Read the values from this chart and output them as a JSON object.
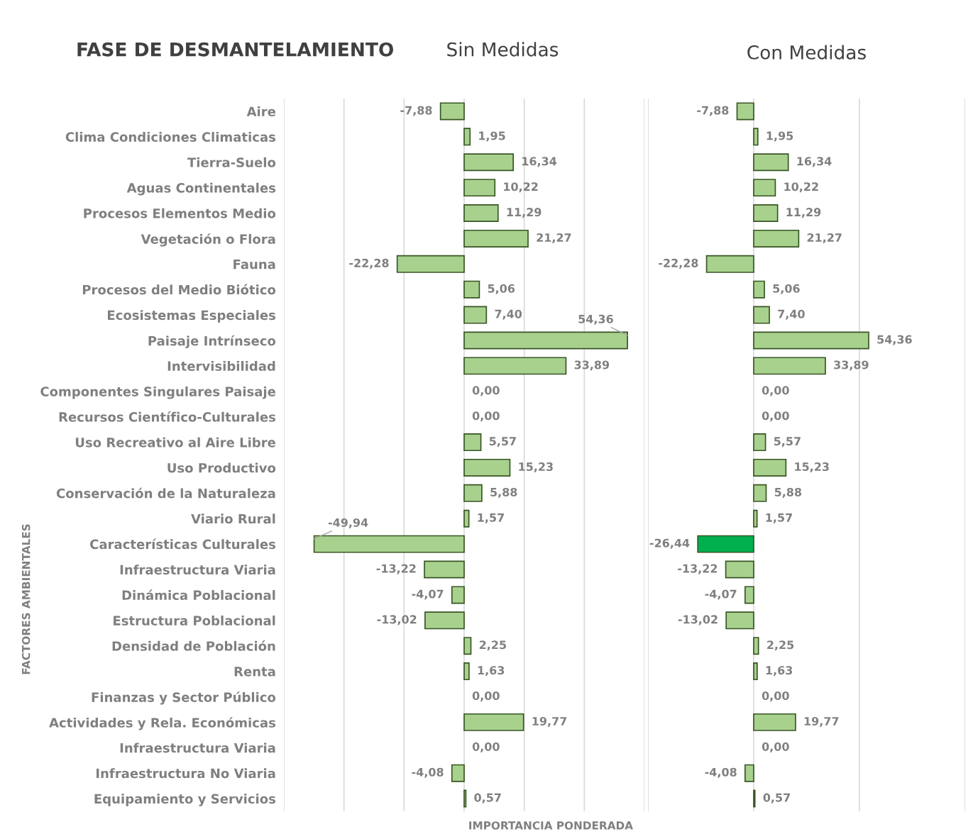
{
  "chart_data": [
    {
      "type": "bar",
      "orientation": "horizontal",
      "title": "FASE DE DESMANTELAMIENTO",
      "subtitle": "Sin Medidas",
      "ylabel": "FACTORES AMBIENTALES",
      "xlabel": "IMPORTANCIA PONDERADA",
      "categories": [
        "Aire",
        "Clima Condiciones Climaticas",
        "Tierra-Suelo",
        "Aguas Continentales",
        "Procesos Elementos Medio",
        "Vegetación o Flora",
        "Fauna",
        "Procesos del Medio Biótico",
        "Ecosistemas Especiales",
        "Paisaje Intrínseco",
        "Intervisibilidad",
        "Componentes Singulares Paisaje",
        "Recursos Científico-Culturales",
        "Uso Recreativo al Aire Libre",
        "Uso Productivo",
        "Conservación de la Naturaleza",
        "Viario Rural",
        "Características Culturales",
        "Infraestructura Viaria",
        "Dinámica Poblacional",
        "Estructura Poblacional",
        "Densidad de Población",
        "Renta",
        "Finanzas y Sector Público",
        "Actividades y Rela. Económicas",
        "Infraestructura Viaria",
        "Infraestructura No Viaria",
        "Equipamiento y Servicios"
      ],
      "values": [
        -7.88,
        1.95,
        16.34,
        10.22,
        11.29,
        21.27,
        -22.28,
        5.06,
        7.4,
        54.36,
        33.89,
        0.0,
        0.0,
        5.57,
        15.23,
        5.88,
        1.57,
        -49.94,
        -13.22,
        -4.07,
        -13.02,
        2.25,
        1.63,
        0.0,
        19.77,
        0.0,
        -4.08,
        0.57
      ],
      "value_labels": [
        "-7,88",
        "1,95",
        "16,34",
        "10,22",
        "11,29",
        "21,27",
        "-22,28",
        "5,06",
        "7,40",
        "54,36",
        "33,89",
        "0,00",
        "0,00",
        "5,57",
        "15,23",
        "5,88",
        "1,57",
        "-49,94",
        "-13,22",
        "-4,07",
        "-13,02",
        "2,25",
        "1,63",
        "0,00",
        "19,77",
        "0,00",
        "-4,08",
        "0,57"
      ],
      "color": "#a9d18e",
      "xlim": [
        -60,
        60
      ],
      "xticks": [
        {
          "value": -60,
          "label": null
        },
        {
          "value": -40,
          "label": null
        },
        {
          "value": -20,
          "label": null
        },
        {
          "value": 0,
          "label": null
        },
        {
          "value": 20,
          "label": null
        },
        {
          "value": 40,
          "label": null
        },
        {
          "value": 60,
          "label": null
        }
      ],
      "grid": "x",
      "tick_labels": "y"
    },
    {
      "type": "bar",
      "orientation": "horizontal",
      "title": "Con Medidas",
      "values": [
        -7.88,
        1.95,
        16.34,
        10.22,
        11.29,
        21.27,
        -22.28,
        5.06,
        7.4,
        54.36,
        33.89,
        0.0,
        0.0,
        5.57,
        15.23,
        5.88,
        1.57,
        -26.44,
        -13.22,
        -4.07,
        -13.02,
        2.25,
        1.63,
        0.0,
        19.77,
        0.0,
        -4.08,
        0.57
      ],
      "value_labels": [
        "-7,88",
        "1,95",
        "16,34",
        "10,22",
        "11,29",
        "21,27",
        "-22,28",
        "5,06",
        "7,40",
        "54,36",
        "33,89",
        "0,00",
        "0,00",
        "5,57",
        "15,23",
        "5,88",
        "1,57",
        "-26,44",
        "-13,22",
        "-4,07",
        "-13,02",
        "2,25",
        "1,63",
        "0,00",
        "19,77",
        "0,00",
        "-4,08",
        "0,57"
      ],
      "colors": [
        "#a9d18e",
        "#a9d18e",
        "#a9d18e",
        "#a9d18e",
        "#a9d18e",
        "#a9d18e",
        "#a9d18e",
        "#a9d18e",
        "#a9d18e",
        "#a9d18e",
        "#a9d18e",
        "#a9d18e",
        "#a9d18e",
        "#a9d18e",
        "#a9d18e",
        "#a9d18e",
        "#a9d18e",
        "#00b050",
        "#a9d18e",
        "#a9d18e",
        "#a9d18e",
        "#a9d18e",
        "#a9d18e",
        "#a9d18e",
        "#a9d18e",
        "#a9d18e",
        "#a9d18e",
        "#a9d18e"
      ],
      "xlim": [
        -50,
        100
      ],
      "xticks": [
        {
          "value": -50,
          "label": null
        },
        {
          "value": 0,
          "label": null
        },
        {
          "value": 50,
          "label": null
        },
        {
          "value": 100,
          "label": null
        }
      ],
      "grid": "x",
      "tick_labels": false
    }
  ]
}
